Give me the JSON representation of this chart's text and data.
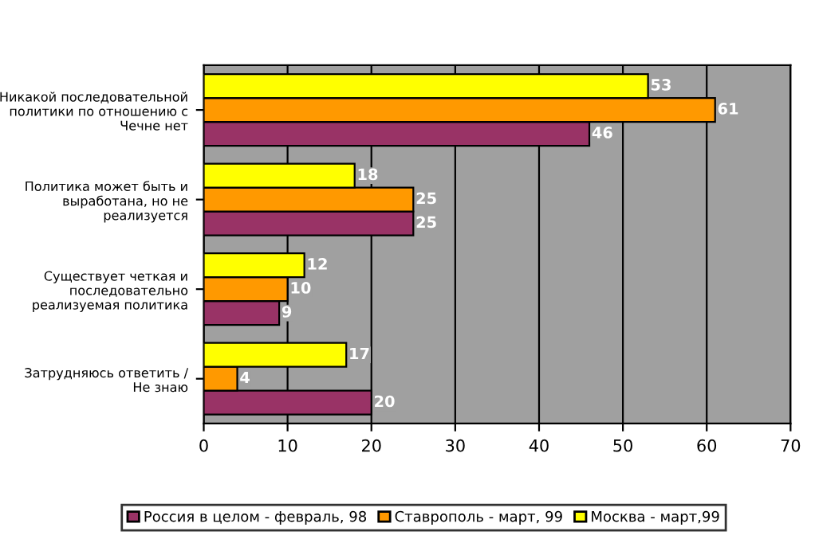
{
  "chart_data": {
    "type": "bar",
    "orientation": "horizontal",
    "categories": [
      "Никакой последовательной политики по отношению с Чечне нет",
      "Политика может быть и выработана, но не реализуется",
      "Существует четкая и последовательно реализуемая политика",
      "Затрудняюсь ответить / Не знаю"
    ],
    "series": [
      {
        "name": "Россия в целом - февраль, 98",
        "color": "#993366",
        "values": [
          46,
          25,
          9,
          20
        ]
      },
      {
        "name": "Ставрополь - март, 99",
        "color": "#ff9900",
        "values": [
          61,
          25,
          10,
          4
        ]
      },
      {
        "name": "Москва - март,99",
        "color": "#ffff00",
        "values": [
          53,
          18,
          12,
          17
        ]
      }
    ],
    "xlim": [
      0,
      70
    ],
    "xticks": [
      0,
      10,
      20,
      30,
      40,
      50,
      60,
      70
    ],
    "grid": "x",
    "legend": "bottom",
    "data_labels": true
  }
}
